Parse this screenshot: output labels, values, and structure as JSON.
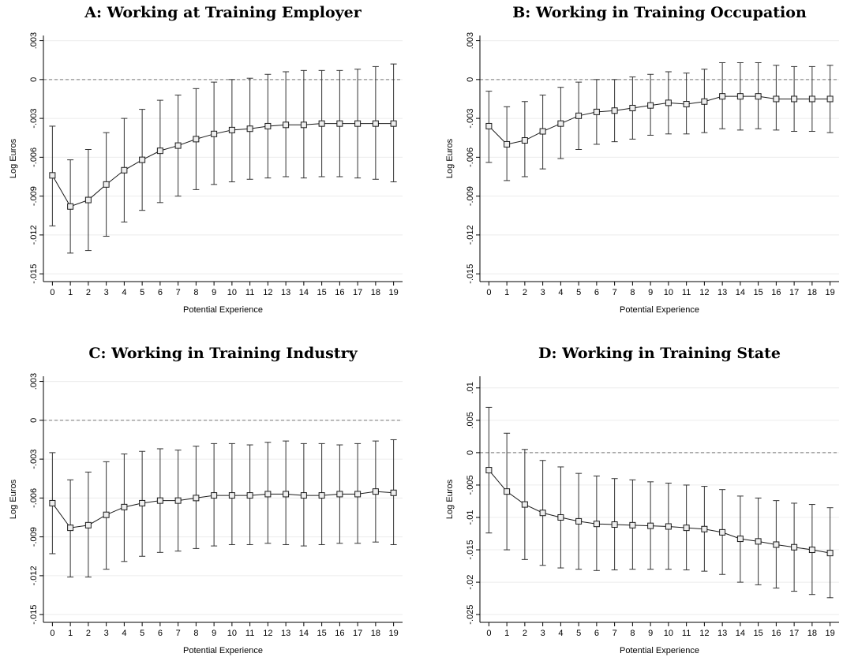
{
  "chart_data": [
    {
      "type": "line",
      "title": "A: Working at Training Employer",
      "xlabel": "Potential Experience",
      "ylabel": "Log Euros",
      "x": [
        0,
        1,
        2,
        3,
        4,
        5,
        6,
        7,
        8,
        9,
        10,
        11,
        12,
        13,
        14,
        15,
        16,
        17,
        18,
        19
      ],
      "values": [
        -0.0074,
        -0.0098,
        -0.0093,
        -0.0081,
        -0.007,
        -0.0062,
        -0.0055,
        -0.0051,
        -0.0046,
        -0.0042,
        -0.0039,
        -0.0038,
        -0.0036,
        -0.0035,
        -0.0035,
        -0.0034,
        -0.0034,
        -0.0034,
        -0.0034,
        -0.0034
      ],
      "upper": [
        -0.0036,
        -0.0062,
        -0.0054,
        -0.0041,
        -0.003,
        -0.0023,
        -0.0016,
        -0.0012,
        -0.0007,
        -0.0002,
        0,
        0.0001,
        0.0004,
        0.0006,
        0.0007,
        0.0007,
        0.0007,
        0.0008,
        0.001,
        0.0012
      ],
      "lower": [
        -0.0113,
        -0.0134,
        -0.0132,
        -0.0121,
        -0.011,
        -0.0101,
        -0.0095,
        -0.009,
        -0.0085,
        -0.0081,
        -0.0079,
        -0.0077,
        -0.0076,
        -0.0075,
        -0.0076,
        -0.0075,
        -0.0075,
        -0.0076,
        -0.0077,
        -0.0079
      ],
      "color": "#1a1a1a",
      "hline": 0,
      "grid": true,
      "xlim": [
        -0.5,
        19.5
      ],
      "xticks": [
        0,
        1,
        2,
        3,
        4,
        5,
        6,
        7,
        8,
        9,
        10,
        11,
        12,
        13,
        14,
        15,
        16,
        17,
        18,
        19
      ],
      "ylim": [
        -0.0156,
        0.0034
      ],
      "yticks": [
        {
          "value": 0.003,
          "label": ".003"
        },
        0,
        {
          "value": -0.003,
          "label": "-.003"
        },
        {
          "value": -0.006,
          "label": "-.006"
        },
        {
          "value": -0.009,
          "label": "-.009"
        },
        {
          "value": -0.012,
          "label": "-.012"
        },
        {
          "value": -0.015,
          "label": "-.015"
        }
      ]
    },
    {
      "type": "line",
      "title": "B: Working in Training Occupation",
      "xlabel": "Potential Experience",
      "ylabel": "Log Euros",
      "x": [
        0,
        1,
        2,
        3,
        4,
        5,
        6,
        7,
        8,
        9,
        10,
        11,
        12,
        13,
        14,
        15,
        16,
        17,
        18,
        19
      ],
      "values": [
        -0.0036,
        -0.005,
        -0.0047,
        -0.004,
        -0.0034,
        -0.0028,
        -0.0025,
        -0.0024,
        -0.0022,
        -0.002,
        -0.0018,
        -0.0019,
        -0.0017,
        -0.0013,
        -0.0013,
        -0.0013,
        -0.0015,
        -0.0015,
        -0.0015,
        -0.0015
      ],
      "upper": [
        -0.0009,
        -0.0021,
        -0.0017,
        -0.0012,
        -0.0006,
        -0.0002,
        0,
        0,
        0.0002,
        0.0004,
        0.0006,
        0.0005,
        0.0008,
        0.0013,
        0.0013,
        0.0013,
        0.0011,
        0.001,
        0.001,
        0.0011
      ],
      "lower": [
        -0.0064,
        -0.0078,
        -0.0075,
        -0.0069,
        -0.0061,
        -0.0054,
        -0.005,
        -0.0048,
        -0.0046,
        -0.0043,
        -0.0042,
        -0.0042,
        -0.0041,
        -0.0038,
        -0.0039,
        -0.0038,
        -0.0039,
        -0.004,
        -0.004,
        -0.0041
      ],
      "color": "#1a1a1a",
      "hline": 0,
      "grid": true,
      "xlim": [
        -0.5,
        19.5
      ],
      "xticks": [
        0,
        1,
        2,
        3,
        4,
        5,
        6,
        7,
        8,
        9,
        10,
        11,
        12,
        13,
        14,
        15,
        16,
        17,
        18,
        19
      ],
      "ylim": [
        -0.0156,
        0.0034
      ],
      "yticks": [
        {
          "value": 0.003,
          "label": ".003"
        },
        0,
        {
          "value": -0.003,
          "label": "-.003"
        },
        {
          "value": -0.006,
          "label": "-.006"
        },
        {
          "value": -0.009,
          "label": "-.009"
        },
        {
          "value": -0.012,
          "label": "-.012"
        },
        {
          "value": -0.015,
          "label": "-.015"
        }
      ]
    },
    {
      "type": "line",
      "title": "C: Working in Training Industry",
      "xlabel": "Potential Experience",
      "ylabel": "Log Euros",
      "x": [
        0,
        1,
        2,
        3,
        4,
        5,
        6,
        7,
        8,
        9,
        10,
        11,
        12,
        13,
        14,
        15,
        16,
        17,
        18,
        19
      ],
      "values": [
        -0.0064,
        -0.0083,
        -0.0081,
        -0.0073,
        -0.0067,
        -0.0064,
        -0.0062,
        -0.0062,
        -0.006,
        -0.0058,
        -0.0058,
        -0.0058,
        -0.0057,
        -0.0057,
        -0.0058,
        -0.0058,
        -0.0057,
        -0.0057,
        -0.0055,
        -0.0056
      ],
      "upper": [
        -0.0025,
        -0.0046,
        -0.004,
        -0.0032,
        -0.0026,
        -0.0024,
        -0.0022,
        -0.0023,
        -0.002,
        -0.0018,
        -0.0018,
        -0.0019,
        -0.0017,
        -0.0016,
        -0.0018,
        -0.0018,
        -0.0019,
        -0.0018,
        -0.0016,
        -0.0015
      ],
      "lower": [
        -0.0103,
        -0.0121,
        -0.0121,
        -0.0115,
        -0.0109,
        -0.0105,
        -0.0102,
        -0.0101,
        -0.0099,
        -0.0097,
        -0.0096,
        -0.0096,
        -0.0095,
        -0.0096,
        -0.0097,
        -0.0096,
        -0.0095,
        -0.0095,
        -0.0094,
        -0.0096
      ],
      "color": "#1a1a1a",
      "hline": 0,
      "grid": true,
      "xlim": [
        -0.5,
        19.5
      ],
      "xticks": [
        0,
        1,
        2,
        3,
        4,
        5,
        6,
        7,
        8,
        9,
        10,
        11,
        12,
        13,
        14,
        15,
        16,
        17,
        18,
        19
      ],
      "ylim": [
        -0.0156,
        0.0034
      ],
      "yticks": [
        {
          "value": 0.003,
          "label": ".003"
        },
        0,
        {
          "value": -0.003,
          "label": "-.003"
        },
        {
          "value": -0.006,
          "label": "-.006"
        },
        {
          "value": -0.009,
          "label": "-.009"
        },
        {
          "value": -0.012,
          "label": "-.012"
        },
        {
          "value": -0.015,
          "label": "-.015"
        }
      ]
    },
    {
      "type": "line",
      "title": "D: Working in Training State",
      "xlabel": "Potential Experience",
      "ylabel": "Log Euros",
      "x": [
        0,
        1,
        2,
        3,
        4,
        5,
        6,
        7,
        8,
        9,
        10,
        11,
        12,
        13,
        14,
        15,
        16,
        17,
        18,
        19
      ],
      "values": [
        -0.0027,
        -0.006,
        -0.008,
        -0.0093,
        -0.01,
        -0.0106,
        -0.011,
        -0.0111,
        -0.0112,
        -0.0113,
        -0.0114,
        -0.0116,
        -0.0118,
        -0.0123,
        -0.0133,
        -0.0137,
        -0.0142,
        -0.0146,
        -0.015,
        -0.0155
      ],
      "upper": [
        0.007,
        0.003,
        0.0005,
        -0.0012,
        -0.0022,
        -0.0032,
        -0.0036,
        -0.004,
        -0.0042,
        -0.0045,
        -0.0047,
        -0.005,
        -0.0052,
        -0.0057,
        -0.0067,
        -0.007,
        -0.0074,
        -0.0078,
        -0.008,
        -0.0085
      ],
      "lower": [
        -0.0124,
        -0.015,
        -0.0165,
        -0.0174,
        -0.0178,
        -0.018,
        -0.0182,
        -0.0181,
        -0.018,
        -0.018,
        -0.018,
        -0.0181,
        -0.0183,
        -0.0188,
        -0.02,
        -0.0204,
        -0.0209,
        -0.0214,
        -0.0219,
        -0.0224
      ],
      "color": "#1a1a1a",
      "hline": 0,
      "grid": true,
      "xlim": [
        -0.5,
        19.5
      ],
      "xticks": [
        0,
        1,
        2,
        3,
        4,
        5,
        6,
        7,
        8,
        9,
        10,
        11,
        12,
        13,
        14,
        15,
        16,
        17,
        18,
        19
      ],
      "ylim": [
        -0.0262,
        0.0118
      ],
      "yticks": [
        {
          "value": 0.01,
          "label": ".01"
        },
        {
          "value": 0.005,
          "label": ".005"
        },
        0,
        {
          "value": -0.005,
          "label": "-.005"
        },
        {
          "value": -0.01,
          "label": "-.01"
        },
        {
          "value": -0.015,
          "label": "-.015"
        },
        {
          "value": -0.02,
          "label": "-.02"
        },
        {
          "value": -0.025,
          "label": "-.025"
        }
      ]
    }
  ]
}
